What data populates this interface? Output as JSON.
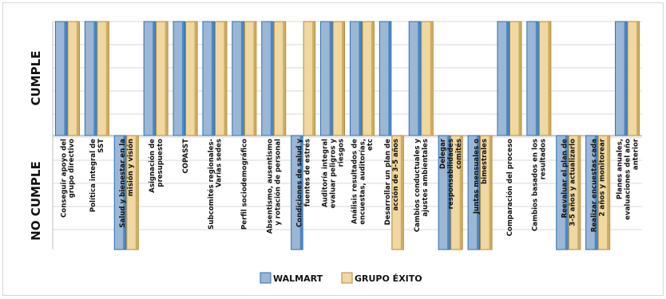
{
  "chart_data": {
    "type": "bar",
    "ylabel_top": "CUMPLE",
    "ylabel_bottom": "NO CUMPLE",
    "ylim": [
      -1,
      1
    ],
    "grid": true,
    "legend_position": "bottom-center",
    "categories": [
      "Conseguir apoyo del grupo directivo",
      "Política integral de SST",
      "Salud y bienestar en la misión y visión",
      "Asignación de presupuesto",
      "COPASST",
      "Subcomités regionales- Varias sedes",
      "Perfil sociodemográfico",
      "Absentismo, ausentismo y rotación de personal",
      "Condiciones de salud y fuentes de estrés",
      "Auditoría integral evaluar peligros y riesgos",
      "Análisis resultados de encuestas, auditorías, etc",
      "Desarrollar un plan de acción de 3-5 años",
      "Cambios conductuales y ajustes ambientales",
      "Delegar responsabilidades comités",
      "Juntas mensuales o bimestrales",
      "Comparación del proceso",
      "Cambios basados en los resultados",
      "Reevaluar el plan de 3-5 años y actualizarlo",
      "Realizar encuestas cada 2 años y monitorear",
      "Planes anuales, evaluaciones del año anterior"
    ],
    "series": [
      {
        "name": "WALMART",
        "color": "#9bb7d4",
        "values": [
          1,
          1,
          -1,
          1,
          1,
          1,
          1,
          1,
          -1,
          1,
          1,
          1,
          1,
          -1,
          -1,
          1,
          1,
          -1,
          -1,
          1
        ]
      },
      {
        "name": "GRUPO ÉXITO",
        "color": "#efd8a1",
        "values": [
          1,
          1,
          -1,
          1,
          1,
          1,
          1,
          1,
          1,
          1,
          1,
          -1,
          1,
          -1,
          -1,
          1,
          1,
          -1,
          -1,
          1
        ]
      }
    ]
  }
}
